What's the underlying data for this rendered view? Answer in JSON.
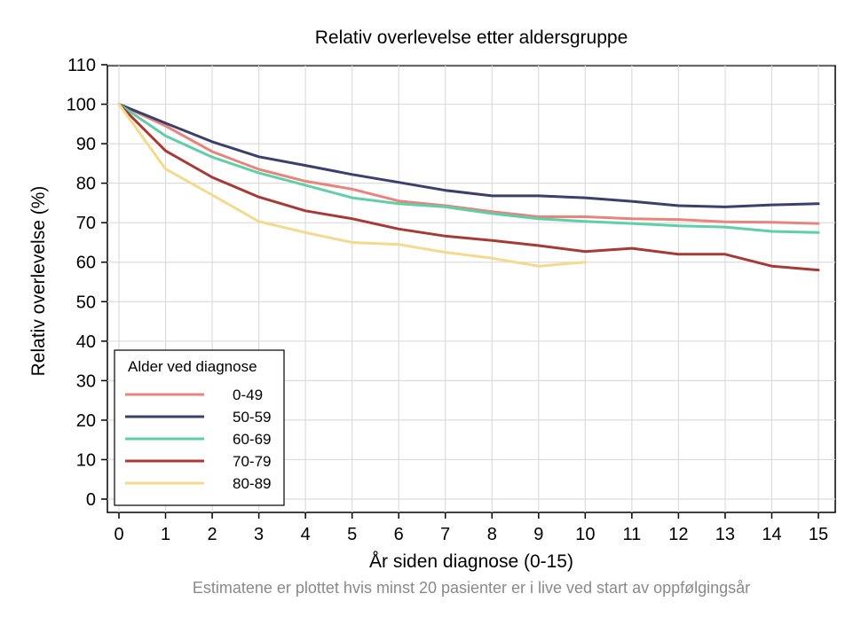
{
  "chart_data": {
    "type": "line",
    "title": "Relativ overlevelse etter aldersgruppe",
    "xlabel": "År siden diagnose (0-15)",
    "ylabel": "Relativ overlevelse (%)",
    "footnote": "Estimatene er plottet hvis minst 20 pasienter er i live ved start av oppfølgingsår",
    "x_ticks": [
      0,
      1,
      2,
      3,
      4,
      5,
      6,
      7,
      8,
      9,
      10,
      11,
      12,
      13,
      14,
      15
    ],
    "y_ticks": [
      0,
      10,
      20,
      30,
      40,
      50,
      60,
      70,
      80,
      90,
      100,
      110
    ],
    "xlim": [
      0,
      15
    ],
    "ylim": [
      0,
      110
    ],
    "grid": true,
    "legend": {
      "title": "Alder ved diagnose",
      "placement": "bottom-left"
    },
    "series": [
      {
        "name": "0-49",
        "color": "#e8847c",
        "x": [
          0,
          1,
          2,
          3,
          4,
          5,
          6,
          7,
          8,
          9,
          10,
          11,
          12,
          13,
          14,
          15
        ],
        "y": [
          100,
          94.5,
          88,
          83.5,
          80.5,
          78.5,
          75.5,
          74.3,
          72.8,
          71.5,
          71.5,
          71,
          70.8,
          70.2,
          70.1,
          69.8
        ]
      },
      {
        "name": "50-59",
        "color": "#3b3f6e",
        "x": [
          0,
          1,
          2,
          3,
          4,
          5,
          6,
          7,
          8,
          9,
          10,
          11,
          12,
          13,
          14,
          15
        ],
        "y": [
          100,
          95.2,
          90.5,
          86.7,
          84.5,
          82.2,
          80.2,
          78.2,
          76.8,
          76.8,
          76.3,
          75.4,
          74.3,
          74,
          74.5,
          74.8
        ]
      },
      {
        "name": "60-69",
        "color": "#5fcfa8",
        "x": [
          0,
          1,
          2,
          3,
          4,
          5,
          6,
          7,
          8,
          9,
          10,
          11,
          12,
          13,
          14,
          15
        ],
        "y": [
          100,
          92,
          86.6,
          82.6,
          79.5,
          76.3,
          74.8,
          74,
          72.3,
          71,
          70.3,
          69.8,
          69.2,
          68.9,
          67.8,
          67.5
        ]
      },
      {
        "name": "70-79",
        "color": "#a83a36",
        "x": [
          0,
          1,
          2,
          3,
          4,
          5,
          6,
          7,
          8,
          9,
          10,
          11,
          12,
          13,
          14,
          15
        ],
        "y": [
          100,
          88.2,
          81.5,
          76.5,
          73,
          71,
          68.4,
          66.6,
          65.5,
          64.2,
          62.7,
          63.5,
          62,
          62,
          59,
          58
        ]
      },
      {
        "name": "80-89",
        "color": "#f3da8c",
        "x": [
          0,
          1,
          2,
          3,
          4,
          5,
          6,
          7,
          8,
          9,
          10
        ],
        "y": [
          100,
          83.6,
          77,
          70.3,
          67.5,
          65,
          64.5,
          62.5,
          61,
          59,
          60
        ]
      }
    ]
  }
}
